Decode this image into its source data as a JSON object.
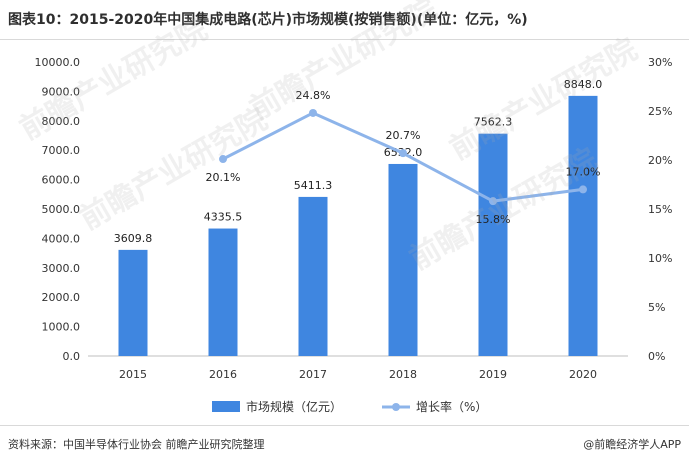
{
  "title": "图表10：2015-2020年中国集成电路(芯片)市场规模(按销售额)(单位：亿元，%)",
  "source": "资料来源：中国半导体行业协会 前瞻产业研究院整理",
  "brand": "@前瞻经济学人APP",
  "watermark": "前瞻产业研究院",
  "colors": {
    "bar": "#3f86e0",
    "line": "#8db4ea",
    "axis_text": "#333333",
    "gridline": "#e3e3e3"
  },
  "chart_data": {
    "type": "bar+line",
    "categories": [
      "2015",
      "2016",
      "2017",
      "2018",
      "2019",
      "2020"
    ],
    "series": [
      {
        "name": "市场规模（亿元）",
        "type": "bar",
        "axis": "left",
        "values": [
          3609.8,
          4335.5,
          5411.3,
          6532.0,
          7562.3,
          8848.0
        ],
        "labels": [
          "3609.8",
          "4335.5",
          "5411.3",
          "6532.0",
          "7562.3",
          "8848.0"
        ]
      },
      {
        "name": "增长率（%）",
        "type": "line",
        "axis": "right",
        "values": [
          null,
          20.1,
          24.8,
          20.7,
          15.8,
          17.0
        ],
        "labels": [
          "",
          "20.1%",
          "24.8%",
          "20.7%",
          "15.8%",
          "17.0%"
        ]
      }
    ],
    "y_left": {
      "min": 0,
      "max": 10000,
      "ticks": [
        "0.0",
        "1000.0",
        "2000.0",
        "3000.0",
        "4000.0",
        "5000.0",
        "6000.0",
        "7000.0",
        "8000.0",
        "9000.0",
        "10000.0"
      ]
    },
    "y_right": {
      "min": 0,
      "max": 30,
      "ticks": [
        "0%",
        "5%",
        "10%",
        "15%",
        "20%",
        "25%",
        "30%"
      ]
    },
    "legend": "bottom",
    "grid": false
  }
}
